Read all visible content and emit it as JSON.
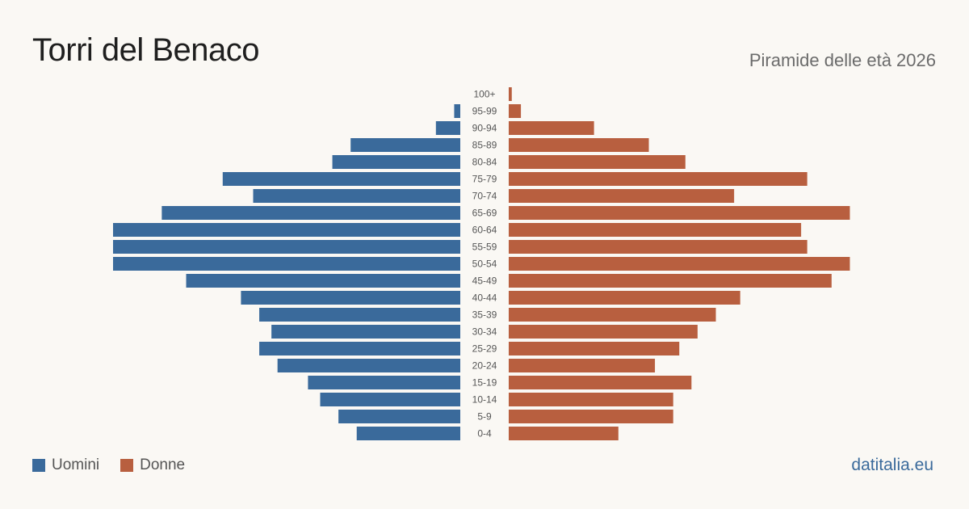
{
  "header": {
    "title": "Torri del Benaco",
    "subtitle": "Piramide delle età 2026"
  },
  "footer": {
    "brand": "datitalia.eu"
  },
  "colors": {
    "men": "#3a6a9b",
    "women": "#b85f3f",
    "label": "#555555"
  },
  "chart_data": {
    "type": "bar",
    "orientation": "horizontal-pyramid",
    "categories": [
      "100+",
      "95-99",
      "90-94",
      "85-89",
      "80-84",
      "75-79",
      "70-74",
      "65-69",
      "60-64",
      "55-59",
      "50-54",
      "45-49",
      "40-44",
      "35-39",
      "30-34",
      "25-29",
      "20-24",
      "15-19",
      "10-14",
      "5-9",
      "0-4"
    ],
    "series": [
      {
        "name": "Uomini",
        "values": [
          0,
          1,
          4,
          18,
          21,
          39,
          34,
          49,
          57,
          57,
          57,
          45,
          36,
          33,
          31,
          33,
          30,
          25,
          23,
          20,
          17
        ]
      },
      {
        "name": "Donne",
        "values": [
          0.5,
          2,
          14,
          23,
          29,
          49,
          37,
          56,
          48,
          49,
          56,
          53,
          38,
          34,
          31,
          28,
          24,
          30,
          27,
          27,
          18
        ]
      }
    ],
    "xlim": [
      0,
      57
    ],
    "legend": "bottom-left",
    "grid": false
  }
}
